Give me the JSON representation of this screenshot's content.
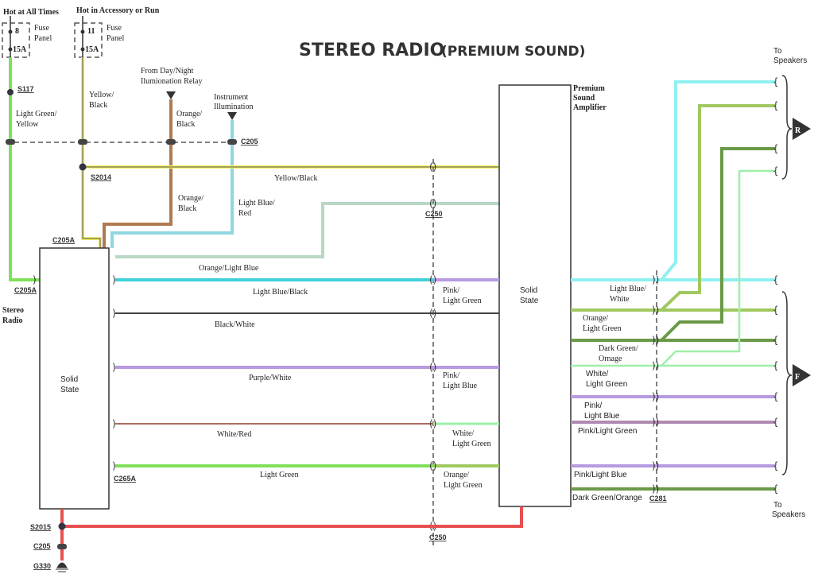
{
  "title": {
    "main": "STEREO RADIO",
    "sub": "(PREMIUM SOUND)"
  },
  "colors": {
    "light_green": "#7fe05a",
    "yellow": "#f2f06a",
    "orange_brown": "#b07a50",
    "light_blue": "#8fd8e0",
    "cyan": "#40d0d8",
    "purple": "#b79ae0",
    "olive": "#a0c860",
    "dark_green": "#6a9a48",
    "mint": "#9ef0a8",
    "red": "#e85050",
    "pale_green": "#b8d8c4"
  },
  "power": {
    "hot_all_times": "Hot at All Times",
    "hot_acc": "Hot in Accessory or Run",
    "fuse1": {
      "num": "8",
      "amp": "15A",
      "label1": "Fuse",
      "label2": "Panel"
    },
    "fuse2": {
      "num": "11",
      "amp": "15A",
      "label1": "Fuse",
      "label2": "Panel"
    },
    "relay1": "From Day/Night",
    "relay2": "Ilumionation Relay",
    "inst1": "Instrument",
    "inst2": "Illumination"
  },
  "splices": {
    "s117": "S117",
    "s2014": "S2014",
    "s2015": "S2015"
  },
  "connectors": {
    "c205": "C205",
    "c205a": "C205A",
    "c265a": "C265A",
    "c250": "C250",
    "c281": "C281",
    "g330": "G330"
  },
  "components": {
    "radio": {
      "name1": "Stereo",
      "name2": "Radio",
      "state1": "Solid",
      "state2": "State"
    },
    "amp": {
      "name1": "Premium",
      "name2": "Sound",
      "name3": "Amplifier",
      "state1": "Solid",
      "state2": "State"
    }
  },
  "wires_left": {
    "lg_y1": "Light Green/",
    "lg_y2": "Yellow",
    "yb1": "Yellow/",
    "yb2": "Black",
    "ob1": "Orange/",
    "ob2": "Black",
    "ob_b1": "Orange/",
    "ob_b2": "Black",
    "lbr1": "Light Blue/",
    "lbr2": "Red",
    "yb_h": "Yellow/Black",
    "olb": "Orange/Light Blue",
    "lbb": "Light Blue/Black",
    "bw": "Black/White",
    "pw": "Purple/White",
    "wr": "White/Red",
    "lg": "Light Green"
  },
  "wires_mid": {
    "plg1": "Pink/",
    "plg2": "Light Green",
    "plb1": "Pink/",
    "plb2": "Light Blue",
    "wlg1": "White/",
    "wlg2": "Light Green",
    "olg1": "Orange/",
    "olg2": "Light Green"
  },
  "wires_right": {
    "lbw1": "Light Blue/",
    "lbw2": "White",
    "olg1": "Orange/",
    "olg2": "Light Green",
    "dgo1": "Dark Green/",
    "dgo2": "Ornage",
    "wlg1": "White/",
    "wlg2": "Light Green",
    "plb1": "Pink/",
    "plb2": "Light Blue",
    "plg": "Pink/Light Green",
    "plb": "Pink/Light Blue",
    "dgo": "Dark Green/Orange"
  },
  "speakers": {
    "to1": "To",
    "sp1": "Speakers",
    "to2": "To",
    "sp2": "Speakers",
    "rear": "R",
    "front": "F"
  }
}
